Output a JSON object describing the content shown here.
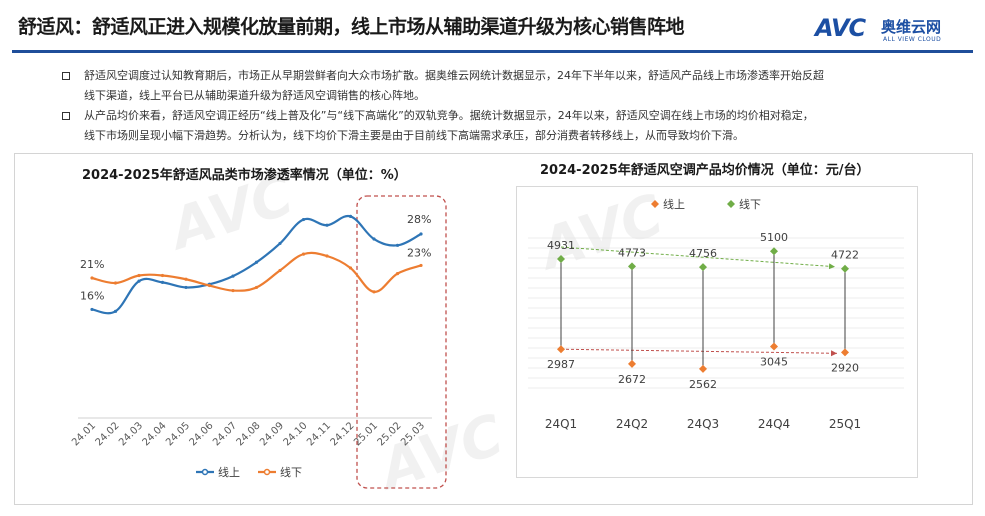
{
  "header": {
    "title": "舒适风：舒适风正进入规模化放量前期，线上市场从辅助渠道升级为核心销售阵地",
    "logo": {
      "text": "AVC",
      "cn": "奥维云网",
      "en": "ALL VIEW CLOUD"
    }
  },
  "bullets": [
    {
      "line1": "舒适风空调度过认知教育期后，市场正从早期尝鲜者向大众市场扩散。据奥维云网统计数据显示，24年下半年以来，舒适风产品线上市场渗透率开始反超",
      "line2": "线下渠道，线上平台已从辅助渠道升级为舒适风空调销售的核心阵地。"
    },
    {
      "line1": "从产品均价来看，舒适风空调正经历“线上普及化”与“线下高端化”的双轨竞争。据统计数据显示，24年以来，舒适风空调在线上市场的均价相对稳定，",
      "line2": "线下市场则呈现小幅下滑趋势。分析认为，线下均价下滑主要是由于目前线下高端需求承压，部分消费者转移线上，从而导致均价下滑。"
    }
  ],
  "colors": {
    "online": "#2e75b6",
    "offline": "#ed7d31",
    "online_green": "#70ad47",
    "highlight": "#c0504d"
  },
  "chart_data": [
    {
      "type": "line",
      "title": "2024-2025年舒适风品类市场渗透率情况（单位：%）",
      "categories": [
        "24.01",
        "24.02",
        "24.03",
        "24.04",
        "24.05",
        "24.06",
        "24.07",
        "24.08",
        "24.09",
        "24.10",
        "24.11",
        "24.12",
        "25.01",
        "25.02",
        "25.03"
      ],
      "series": [
        {
          "name": "线上",
          "values": [
            16,
            15.7,
            20.5,
            20.3,
            19.5,
            20,
            21.3,
            23.5,
            26.5,
            30.3,
            29.4,
            30.8,
            27.2,
            26.2,
            28
          ]
        },
        {
          "name": "线下",
          "values": [
            21,
            20.2,
            21.4,
            21.4,
            20.8,
            19.8,
            19,
            19.5,
            22.2,
            24.8,
            24.5,
            22.6,
            18.8,
            21.7,
            23
          ]
        }
      ],
      "data_labels": [
        {
          "series": "线上",
          "index": 0,
          "text": "16%"
        },
        {
          "series": "线下",
          "index": 0,
          "text": "21%"
        },
        {
          "series": "线上",
          "index": 14,
          "text": "28%"
        },
        {
          "series": "线下",
          "index": 14,
          "text": "23%"
        }
      ],
      "ylim": [
        0,
        35
      ],
      "highlight_range": [
        "25.01",
        "25.03"
      ],
      "legend_position": "bottom",
      "grid": false
    },
    {
      "type": "scatter",
      "title": "2024-2025年舒适风空调产品均价情况（单位：元/台）",
      "categories": [
        "24Q1",
        "24Q2",
        "24Q3",
        "24Q4",
        "25Q1"
      ],
      "series": [
        {
          "name": "线上",
          "values": [
            2987,
            2672,
            2562,
            3045,
            2920
          ]
        },
        {
          "name": "线下",
          "values": [
            4931,
            4773,
            4756,
            5100,
            4722
          ]
        }
      ],
      "ylim": [
        2000,
        5600
      ],
      "legend_position": "top",
      "grid": true
    }
  ]
}
